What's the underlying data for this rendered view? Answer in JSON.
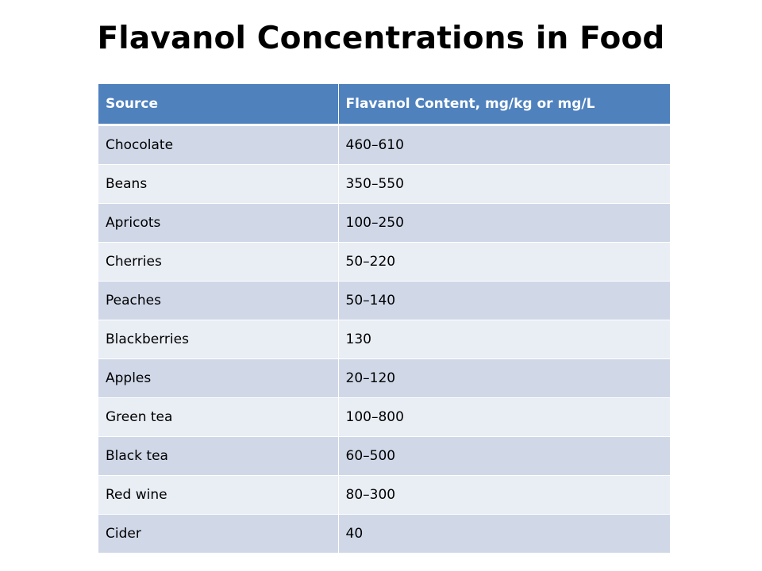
{
  "title": "Flavanol Concentrations in Food",
  "colors": {
    "header_bg": "#4f81bd",
    "row_dark": "#d0d8e8",
    "row_light": "#e9edf4",
    "header_text": "#ffffff",
    "cell_text": "#000000"
  },
  "table": {
    "headers": [
      "Source",
      "Flavanol Content, mg/kg or mg/L"
    ],
    "rows": [
      [
        "Chocolate",
        "460–610"
      ],
      [
        "Beans",
        "350–550"
      ],
      [
        "Apricots",
        "100–250"
      ],
      [
        "Cherries",
        "50–220"
      ],
      [
        "Peaches",
        "50–140"
      ],
      [
        "Blackberries",
        "130"
      ],
      [
        "Apples",
        "20–120"
      ],
      [
        "Green tea",
        "100–800"
      ],
      [
        "Black tea",
        "60–500"
      ],
      [
        "Red wine",
        "80–300"
      ],
      [
        "Cider",
        "40"
      ]
    ]
  }
}
